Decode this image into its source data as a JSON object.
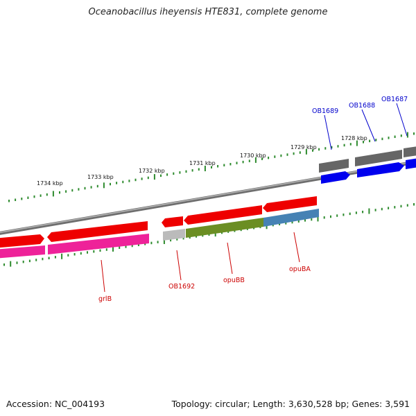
{
  "title": "Oceanobacillus iheyensis HTE831, complete genome",
  "footer": {
    "accession": "Accession: NC_004193",
    "summary": "Topology: circular; Length: 3,630,528 bp; Genes: 3,591"
  },
  "scale_labels": [
    "1734 kbp",
    "1733 kbp",
    "1732 kbp",
    "1731 kbp",
    "1730 kbp",
    "1729 kbp",
    "1728 kbp"
  ],
  "gene_labels": [
    {
      "name": "OB1689",
      "strand": "forward"
    },
    {
      "name": "OB1688",
      "strand": "forward"
    },
    {
      "name": "OB1687",
      "strand": "forward"
    },
    {
      "name": "grlB",
      "strand": "reverse"
    },
    {
      "name": "OB1692",
      "strand": "reverse"
    },
    {
      "name": "opuBB",
      "strand": "reverse"
    },
    {
      "name": "opuBA",
      "strand": "reverse"
    }
  ],
  "colors": {
    "backbone": "#8a8a8a",
    "tick": "#2e8b2e",
    "cds_forward": "#0000ee",
    "cds_reverse": "#ee0000",
    "gene_forward": "#666666",
    "gene_light": "#bbbbbb",
    "gene_pink": "#ee2299",
    "gene_olive": "#6b8e23",
    "gene_steel": "#4682b4",
    "label_forward": "#0000cc",
    "label_reverse": "#cc0000"
  }
}
